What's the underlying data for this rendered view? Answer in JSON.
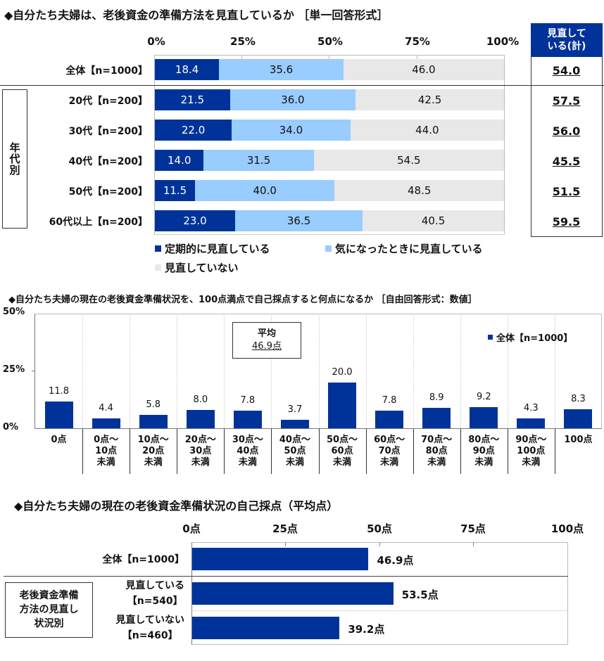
{
  "colors": {
    "navy": "#003399",
    "light_blue": "#99ccff",
    "light_gray": "#e8e8e8",
    "header_navy": "#003399"
  },
  "chart1": {
    "title": "◆自分たち夫婦は、老後資金の準備方法を見直しているか ［単一回答形式］",
    "ticks": [
      "0%",
      "25%",
      "50%",
      "75%",
      "100%"
    ],
    "group_label": "年代別",
    "summary_header": "見直して\nいる(計)",
    "rows": [
      {
        "label": "全体【n=1000】",
        "values": [
          18.4,
          35.6,
          46.0
        ],
        "labels": [
          "18.4",
          "35.6",
          "46.0"
        ],
        "total": "54.0"
      },
      {
        "label": "20代【n=200】",
        "values": [
          21.5,
          36.0,
          42.5
        ],
        "labels": [
          "21.5",
          "36.0",
          "42.5"
        ],
        "total": "57.5"
      },
      {
        "label": "30代【n=200】",
        "values": [
          22.0,
          34.0,
          44.0
        ],
        "labels": [
          "22.0",
          "34.0",
          "44.0"
        ],
        "total": "56.0"
      },
      {
        "label": "40代【n=200】",
        "values": [
          14.0,
          31.5,
          54.5
        ],
        "labels": [
          "14.0",
          "31.5",
          "54.5"
        ],
        "total": "45.5"
      },
      {
        "label": "50代【n=200】",
        "values": [
          11.5,
          40.0,
          48.5
        ],
        "labels": [
          "11.5",
          "40.0",
          "48.5"
        ],
        "total": "51.5"
      },
      {
        "label": "60代以上【n=200】",
        "values": [
          23.0,
          36.5,
          40.5
        ],
        "labels": [
          "23.0",
          "36.5",
          "40.5"
        ],
        "total": "59.5"
      }
    ],
    "legend": [
      "定期的に見直している",
      "気になったときに見直している",
      "見直していない"
    ]
  },
  "chart2": {
    "title": "◆自分たち夫婦の現在の老後資金準備状況を、100点満点で自己採点すると何点になるか ［自由回答形式：数値］",
    "yticks": [
      "50%",
      "25%",
      "0%"
    ],
    "average_label": "平均",
    "average_value": "46.9点",
    "legend": "全体【n=1000】",
    "categories": [
      "0点",
      "0点～\n10点\n未満",
      "10点～\n20点\n未満",
      "20点～\n30点\n未満",
      "30点～\n40点\n未満",
      "40点～\n50点\n未満",
      "50点～\n60点\n未満",
      "60点～\n70点\n未満",
      "70点～\n80点\n未満",
      "80点～\n90点\n未満",
      "90点～\n100点\n未満",
      "100点"
    ],
    "values": [
      11.8,
      4.4,
      5.8,
      8.0,
      7.8,
      3.7,
      20.0,
      7.8,
      8.9,
      9.2,
      4.3,
      8.3
    ],
    "value_labels": [
      "11.8",
      "4.4",
      "5.8",
      "8.0",
      "7.8",
      "3.7",
      "20.0",
      "7.8",
      "8.9",
      "9.2",
      "4.3",
      "8.3"
    ]
  },
  "chart3": {
    "title": "◆自分たち夫婦の現在の老後資金準備状況の自己採点（平均点）",
    "ticks": [
      "0点",
      "25点",
      "50点",
      "75点",
      "100点"
    ],
    "group_label": "老後資金準備\n方法の見直し\n状況別",
    "rows": [
      {
        "label": "全体【n=1000】",
        "value": 46.9,
        "value_label": "46.9点"
      },
      {
        "label": "見直している\n【n=540】",
        "value": 53.5,
        "value_label": "53.5点"
      },
      {
        "label": "見直していない\n【n=460】",
        "value": 39.2,
        "value_label": "39.2点"
      }
    ]
  },
  "chart_data": [
    {
      "type": "bar",
      "orientation": "horizontal-stacked",
      "title": "◆自分たち夫婦は、老後資金の準備方法を見直しているか ［単一回答形式］",
      "xlabel": "",
      "ylabel": "",
      "xlim": [
        0,
        100
      ],
      "xticks": [
        "0%",
        "25%",
        "50%",
        "75%",
        "100%"
      ],
      "categories": [
        "全体【n=1000】",
        "20代【n=200】",
        "30代【n=200】",
        "40代【n=200】",
        "50代【n=200】",
        "60代以上【n=200】"
      ],
      "series": [
        {
          "name": "定期的に見直している",
          "color": "#003399",
          "values": [
            18.4,
            21.5,
            22.0,
            14.0,
            11.5,
            23.0
          ]
        },
        {
          "name": "気になったときに見直している",
          "color": "#99ccff",
          "values": [
            35.6,
            36.0,
            34.0,
            31.5,
            40.0,
            36.5
          ]
        },
        {
          "name": "見直していない",
          "color": "#e8e8e8",
          "values": [
            46.0,
            42.5,
            44.0,
            54.5,
            48.5,
            40.5
          ]
        }
      ],
      "annotations": {
        "見直している(計)": [
          54.0,
          57.5,
          56.0,
          45.5,
          51.5,
          59.5
        ],
        "group": "年代別"
      },
      "legend_position": "bottom"
    },
    {
      "type": "bar",
      "title": "◆自分たち夫婦の現在の老後資金準備状況を、100点満点で自己採点すると何点になるか ［自由回答形式：数値］",
      "xlabel": "",
      "ylabel": "",
      "ylim": [
        0,
        50
      ],
      "yticks": [
        "0%",
        "25%",
        "50%"
      ],
      "categories": [
        "0点",
        "0点～10点未満",
        "10点～20点未満",
        "20点～30点未満",
        "30点～40点未満",
        "40点～50点未満",
        "50点～60点未満",
        "60点～70点未満",
        "70点～80点未満",
        "80点～90点未満",
        "90点～100点未満",
        "100点"
      ],
      "series": [
        {
          "name": "全体【n=1000】",
          "color": "#003399",
          "values": [
            11.8,
            4.4,
            5.8,
            8.0,
            7.8,
            3.7,
            20.0,
            7.8,
            8.9,
            9.2,
            4.3,
            8.3
          ]
        }
      ],
      "annotations": {
        "平均": "46.9点"
      },
      "legend_position": "top-right",
      "grid": "vertical-dotted"
    },
    {
      "type": "bar",
      "orientation": "horizontal",
      "title": "◆自分たち夫婦の現在の老後資金準備状況の自己採点（平均点）",
      "xlabel": "",
      "ylabel": "",
      "xlim": [
        0,
        100
      ],
      "xticks": [
        "0点",
        "25点",
        "50点",
        "75点",
        "100点"
      ],
      "categories": [
        "全体【n=1000】",
        "見直している【n=540】",
        "見直していない【n=460】"
      ],
      "series": [
        {
          "name": "平均点",
          "color": "#003399",
          "values": [
            46.9,
            53.5,
            39.2
          ]
        }
      ],
      "annotations": {
        "group": "老後資金準備方法の見直し状況別"
      }
    }
  ]
}
